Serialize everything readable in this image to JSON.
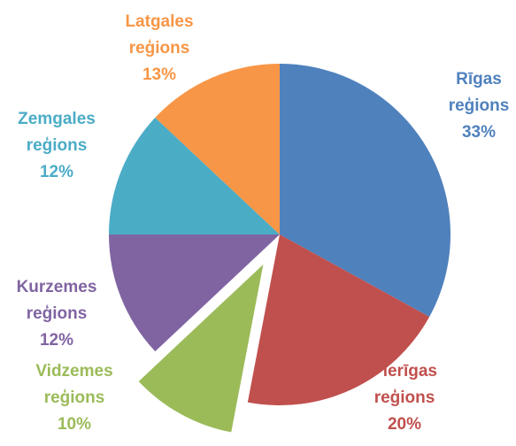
{
  "chart_data": {
    "type": "pie",
    "categories": [
      "Rīgas reģions",
      "Pierīgas reģions",
      "Vidzemes reģions",
      "Kurzemes reģions",
      "Zemgales reģions",
      "Latgales reģions"
    ],
    "values": [
      33,
      20,
      10,
      12,
      12,
      13
    ],
    "value_labels": [
      "33%",
      "20%",
      "10%",
      "12%",
      "12%",
      "13%"
    ],
    "colors": [
      "#4f81bd",
      "#c0504d",
      "#9bbb59",
      "#8064a2",
      "#4bacc6",
      "#f79646"
    ],
    "explode": [
      0,
      0,
      0.2,
      0,
      0,
      0
    ]
  }
}
